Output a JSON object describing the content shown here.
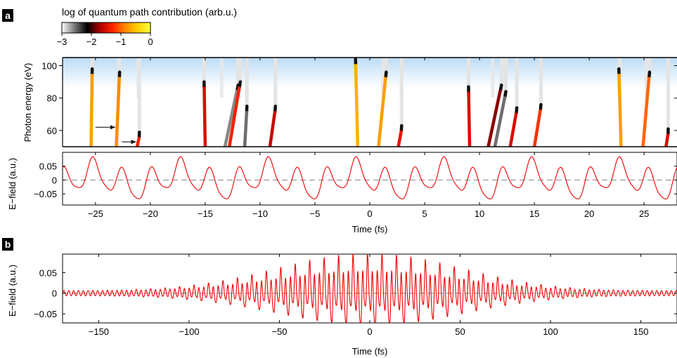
{
  "panels": {
    "a": {
      "letter": "a"
    },
    "b": {
      "letter": "b"
    }
  },
  "colorbar": {
    "title": "log of quantum path contribution (arb.u.)",
    "ticks": [
      -3,
      -2,
      -1,
      0
    ],
    "tick_labels": [
      "−3",
      "−2",
      "−1",
      "0"
    ],
    "colors": [
      "#ffffff",
      "#777777",
      "#000000",
      "#aa0000",
      "#ff2200",
      "#ff8800",
      "#ffd000",
      "#ffff40"
    ]
  },
  "chart_data": [
    {
      "id": "photon-energy-paths",
      "type": "scatter",
      "ylabel": "Photon energy (eV)",
      "xlim": [
        -28,
        28
      ],
      "ylim": [
        50,
        105
      ],
      "yticks": [
        60,
        80,
        100
      ],
      "cutoff_band": {
        "from": 88,
        "to": 105,
        "color": "#bcdcf6"
      },
      "paths": [
        {
          "x0": -25.4,
          "x1": -25.3,
          "ytop": 98,
          "v": -0.3
        },
        {
          "x0": -23.1,
          "x1": -22.8,
          "ytop": 96,
          "v": -0.4
        },
        {
          "x0": -21.2,
          "x1": -21.0,
          "ytop": 59,
          "v": -1.0
        },
        {
          "x0": -15.0,
          "x1": -15.1,
          "ytop": 90,
          "v": -1.2
        },
        {
          "x0": -13.2,
          "x1": -12.0,
          "ytop": 88,
          "v": -2.4
        },
        {
          "x0": -12.8,
          "x1": -11.8,
          "ytop": 90,
          "v": -1.0
        },
        {
          "x0": -11.4,
          "x1": -11.2,
          "ytop": 75,
          "v": -2.3
        },
        {
          "x0": -9.1,
          "x1": -8.6,
          "ytop": 75,
          "v": -1.3
        },
        {
          "x0": -1.1,
          "x1": -1.3,
          "ytop": 104,
          "v": -0.2
        },
        {
          "x0": 0.8,
          "x1": 1.5,
          "ytop": 96,
          "v": -0.3
        },
        {
          "x0": 2.6,
          "x1": 2.9,
          "ytop": 63,
          "v": -1.1
        },
        {
          "x0": 9.1,
          "x1": 9.0,
          "ytop": 87,
          "v": -1.2
        },
        {
          "x0": 10.8,
          "x1": 12.0,
          "ytop": 88,
          "v": -1.6
        },
        {
          "x0": 11.4,
          "x1": 12.4,
          "ytop": 84,
          "v": -2.3
        },
        {
          "x0": 12.8,
          "x1": 13.4,
          "ytop": 74,
          "v": -1.2
        },
        {
          "x0": 15.0,
          "x1": 15.6,
          "ytop": 76,
          "v": -0.9
        },
        {
          "x0": 22.9,
          "x1": 22.7,
          "ytop": 98,
          "v": -0.3
        },
        {
          "x0": 24.9,
          "x1": 25.5,
          "ytop": 96,
          "v": -0.6
        },
        {
          "x0": 27.0,
          "x1": 27.2,
          "ytop": 61,
          "v": -1.2
        }
      ],
      "ghosts": [
        {
          "x0": -25.3,
          "ytop": 105
        },
        {
          "x0": -22.9,
          "ytop": 105
        },
        {
          "x0": -21.1,
          "ytop": 105
        },
        {
          "x0": -13.5,
          "ytop": 105
        },
        {
          "x0": -11.9,
          "ytop": 105
        },
        {
          "x0": -11.2,
          "ytop": 105
        },
        {
          "x0": 1.2,
          "ytop": 105
        },
        {
          "x0": 2.9,
          "ytop": 105
        },
        {
          "x0": 9.0,
          "ytop": 105
        },
        {
          "x0": 11.2,
          "ytop": 105
        },
        {
          "x0": 12.2,
          "ytop": 105
        },
        {
          "x0": 13.4,
          "ytop": 105
        },
        {
          "x0": 22.8,
          "ytop": 105
        },
        {
          "x0": 25.2,
          "ytop": 105
        },
        {
          "x0": 27.2,
          "ytop": 105
        }
      ],
      "arrows": [
        {
          "from": [
            -25.0,
            62
          ],
          "to": [
            -23.2,
            62
          ]
        },
        {
          "from": [
            -22.6,
            53
          ],
          "to": [
            -21.3,
            53
          ]
        }
      ]
    },
    {
      "id": "efield-zoom",
      "type": "line",
      "xlabel": "Time (fs)",
      "ylabel": "E−field (a.u.)",
      "xlim": [
        -28,
        28
      ],
      "ylim": [
        -0.09,
        0.1
      ],
      "xticks": [
        -25,
        -20,
        -15,
        -10,
        -5,
        0,
        5,
        10,
        15,
        20,
        25
      ],
      "xtick_labels": [
        "−25",
        "−20",
        "−15",
        "−10",
        "−5",
        "0",
        "5",
        "10",
        "15",
        "20",
        "25"
      ],
      "yticks": [
        -0.05,
        0,
        0.05
      ],
      "ytick_labels": [
        "−0.05",
        "0",
        "0.05"
      ],
      "series": [
        {
          "color": "#ee0000",
          "components": [
            {
              "amp": 0.05,
              "period": 2.667,
              "phase": -25.2
            },
            {
              "amp": 0.025,
              "period": 8.0,
              "phase": -25.3
            },
            {
              "amp": 0.01,
              "period": 1.333,
              "phase": -25.3
            }
          ]
        }
      ],
      "zero_line": true
    },
    {
      "id": "efield-full",
      "type": "line",
      "xlabel": "Time (fs)",
      "ylabel": "E−field (a.u.)",
      "xlim": [
        -170,
        170
      ],
      "ylim": [
        -0.072,
        0.095
      ],
      "xticks": [
        -150,
        -100,
        -50,
        0,
        50,
        100,
        150
      ],
      "xtick_labels": [
        "−150",
        "−100",
        "−50",
        "0",
        "50",
        "100",
        "150"
      ],
      "yticks": [
        -0.05,
        0,
        0.05
      ],
      "ytick_labels": [
        "−0.05",
        "0",
        "0.05"
      ],
      "envelope_fwhm": 120,
      "series": [
        {
          "color": "#ee0000",
          "components": [
            {
              "amp": 0.05,
              "period": 2.667,
              "phase": -25.2
            },
            {
              "amp": 0.025,
              "period": 8.0,
              "phase": -25.3
            },
            {
              "amp": 0.01,
              "period": 1.333,
              "phase": -25.3
            }
          ]
        }
      ],
      "zero_line": true
    }
  ]
}
